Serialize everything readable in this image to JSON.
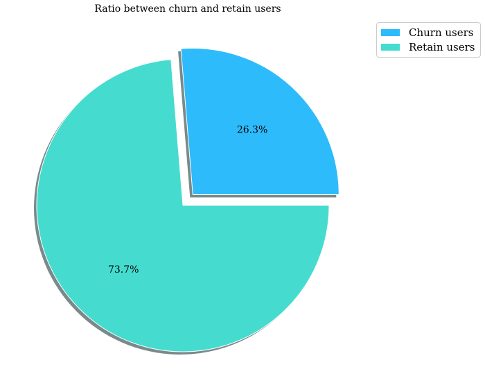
{
  "chart_data": {
    "type": "pie",
    "title": "Ratio between churn and retain users",
    "categories": [
      "Churn users",
      "Retain users"
    ],
    "values": [
      26.3,
      73.7
    ],
    "labels": [
      "26.3%",
      "73.7%"
    ],
    "colors": [
      "#2DBBFC",
      "#45DCCF"
    ],
    "explode": [
      0.1,
      0
    ],
    "shadow": true,
    "start_angle_deg": 0,
    "legend": {
      "position": "top-right",
      "entries": [
        "Churn users",
        "Retain users"
      ]
    }
  }
}
